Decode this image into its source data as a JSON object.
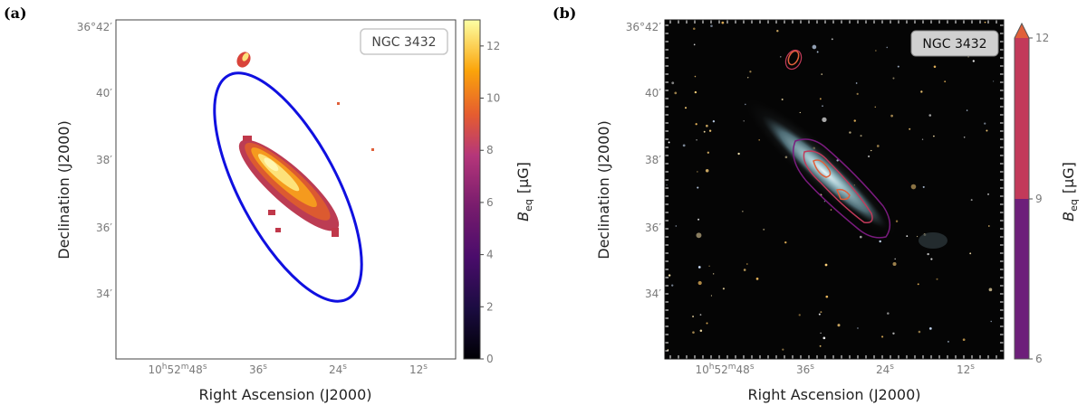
{
  "colors": {
    "beam_ellipse": "#1010e0",
    "contour_levels": [
      "#7a1b7e",
      "#c23a5a",
      "#e0603a"
    ],
    "inferno_map": [
      "#000004",
      "#420a68",
      "#932667",
      "#dd513a",
      "#fca50a",
      "#fcffa4"
    ]
  },
  "chart_data": [
    {
      "panel": "(a)",
      "type": "heatmap",
      "galaxy_label": "NGC 3432",
      "xlabel": "Right Ascension (J2000)",
      "ylabel": "Declination (J2000)",
      "x_ticks": [
        "10h52m48s",
        "36s",
        "24s",
        "12s"
      ],
      "x_ticks_parts": [
        {
          "main": "10",
          "sup1": "h",
          "mid": "52",
          "sup2": "m",
          "end": "48",
          "sup3": "s"
        },
        {
          "main": "36",
          "sup3": "s"
        },
        {
          "main": "24",
          "sup3": "s"
        },
        {
          "main": "12",
          "sup3": "s"
        }
      ],
      "y_ticks": [
        "36°42′",
        "40′",
        "38′",
        "36′",
        "34′"
      ],
      "colorbar": {
        "label": "B_eq [μG]",
        "label_main": "B",
        "label_sub": "eq",
        "label_unit": "[μG]",
        "ticks": [
          0,
          2,
          4,
          6,
          8,
          10,
          12
        ],
        "range": [
          0,
          13
        ],
        "colormap": "inferno"
      }
    },
    {
      "panel": "(b)",
      "type": "image_with_contours",
      "galaxy_label": "NGC 3432",
      "xlabel": "Right Ascension (J2000)",
      "ylabel": "Declination (J2000)",
      "x_ticks": [
        "10h52m48s",
        "36s",
        "24s",
        "12s"
      ],
      "x_ticks_parts": [
        {
          "main": "10",
          "sup1": "h",
          "mid": "52",
          "sup2": "m",
          "end": "48",
          "sup3": "s"
        },
        {
          "main": "36",
          "sup3": "s"
        },
        {
          "main": "24",
          "sup3": "s"
        },
        {
          "main": "12",
          "sup3": "s"
        }
      ],
      "y_ticks": [
        "36°42′",
        "40′",
        "38′",
        "36′",
        "34′"
      ],
      "contour_levels": [
        6,
        9,
        12
      ],
      "colorbar": {
        "label": "B_eq [μG]",
        "label_main": "B",
        "label_sub": "eq",
        "label_unit": "[μG]",
        "ticks": [
          6,
          9,
          12
        ],
        "extend": "max"
      }
    }
  ]
}
